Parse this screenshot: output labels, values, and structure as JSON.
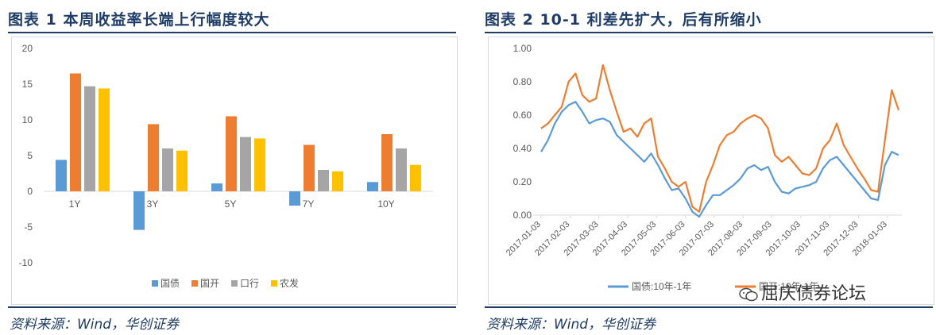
{
  "figure1": {
    "title": "图表 1    本周收益率长端上行幅度较大",
    "source": "资料来源：Wind，华创证券",
    "chart_data": {
      "type": "bar",
      "categories": [
        "1Y",
        "3Y",
        "5Y",
        "7Y",
        "10Y"
      ],
      "ylim": [
        -10,
        20
      ],
      "yticks": [
        -10,
        -5,
        0,
        5,
        10,
        15,
        20
      ],
      "grid": false,
      "legend": "bottom",
      "series": [
        {
          "name": "国债",
          "color": "#5b9bd5",
          "values": [
            4.4,
            -5.4,
            1.1,
            -2.0,
            1.3
          ]
        },
        {
          "name": "国开",
          "color": "#ed7d31",
          "values": [
            16.5,
            9.4,
            10.5,
            6.5,
            8.0
          ]
        },
        {
          "name": "口行",
          "color": "#a5a5a5",
          "values": [
            14.7,
            6.0,
            7.6,
            3.0,
            6.0
          ]
        },
        {
          "name": "农发",
          "color": "#ffc000",
          "values": [
            14.4,
            5.7,
            7.4,
            2.8,
            3.7
          ]
        }
      ]
    }
  },
  "figure2": {
    "title": "图表 2    10-1 利差先扩大，后有所缩小",
    "source": "资料来源：Wind，华创证券",
    "watermark": "屈庆债券论坛",
    "chart_data": {
      "type": "line",
      "ylim": [
        0,
        1.0
      ],
      "yticks": [
        "0.00",
        "0.20",
        "0.40",
        "0.60",
        "0.80",
        "1.00"
      ],
      "xticks": [
        "2017-01-03",
        "2017-02-03",
        "2017-03-03",
        "2017-04-03",
        "2017-05-03",
        "2017-06-03",
        "2017-07-03",
        "2017-08-03",
        "2017-09-03",
        "2017-10-03",
        "2017-11-03",
        "2017-12-03",
        "2018-01-03"
      ],
      "grid": false,
      "legend": "bottom",
      "series": [
        {
          "name": "国债:10年-1年",
          "color": "#5b9bd5",
          "values": [
            0.38,
            0.45,
            0.55,
            0.62,
            0.66,
            0.68,
            0.62,
            0.55,
            0.57,
            0.58,
            0.56,
            0.48,
            0.44,
            0.4,
            0.36,
            0.32,
            0.37,
            0.3,
            0.22,
            0.15,
            0.16,
            0.1,
            0.02,
            -0.01,
            0.06,
            0.12,
            0.12,
            0.15,
            0.18,
            0.22,
            0.28,
            0.3,
            0.27,
            0.29,
            0.2,
            0.14,
            0.13,
            0.16,
            0.17,
            0.18,
            0.2,
            0.28,
            0.33,
            0.35,
            0.3,
            0.25,
            0.2,
            0.15,
            0.1,
            0.09,
            0.3,
            0.38,
            0.36
          ]
        },
        {
          "name": "国开:10年-1年",
          "color": "#ed7d31",
          "values": [
            0.52,
            0.55,
            0.6,
            0.65,
            0.8,
            0.85,
            0.72,
            0.68,
            0.7,
            0.9,
            0.75,
            0.62,
            0.5,
            0.52,
            0.47,
            0.55,
            0.58,
            0.35,
            0.28,
            0.2,
            0.17,
            0.2,
            0.05,
            0.02,
            0.2,
            0.3,
            0.42,
            0.48,
            0.5,
            0.55,
            0.58,
            0.6,
            0.58,
            0.52,
            0.36,
            0.32,
            0.35,
            0.3,
            0.25,
            0.24,
            0.28,
            0.4,
            0.45,
            0.55,
            0.42,
            0.35,
            0.28,
            0.22,
            0.15,
            0.14,
            0.45,
            0.75,
            0.63
          ]
        }
      ]
    }
  }
}
